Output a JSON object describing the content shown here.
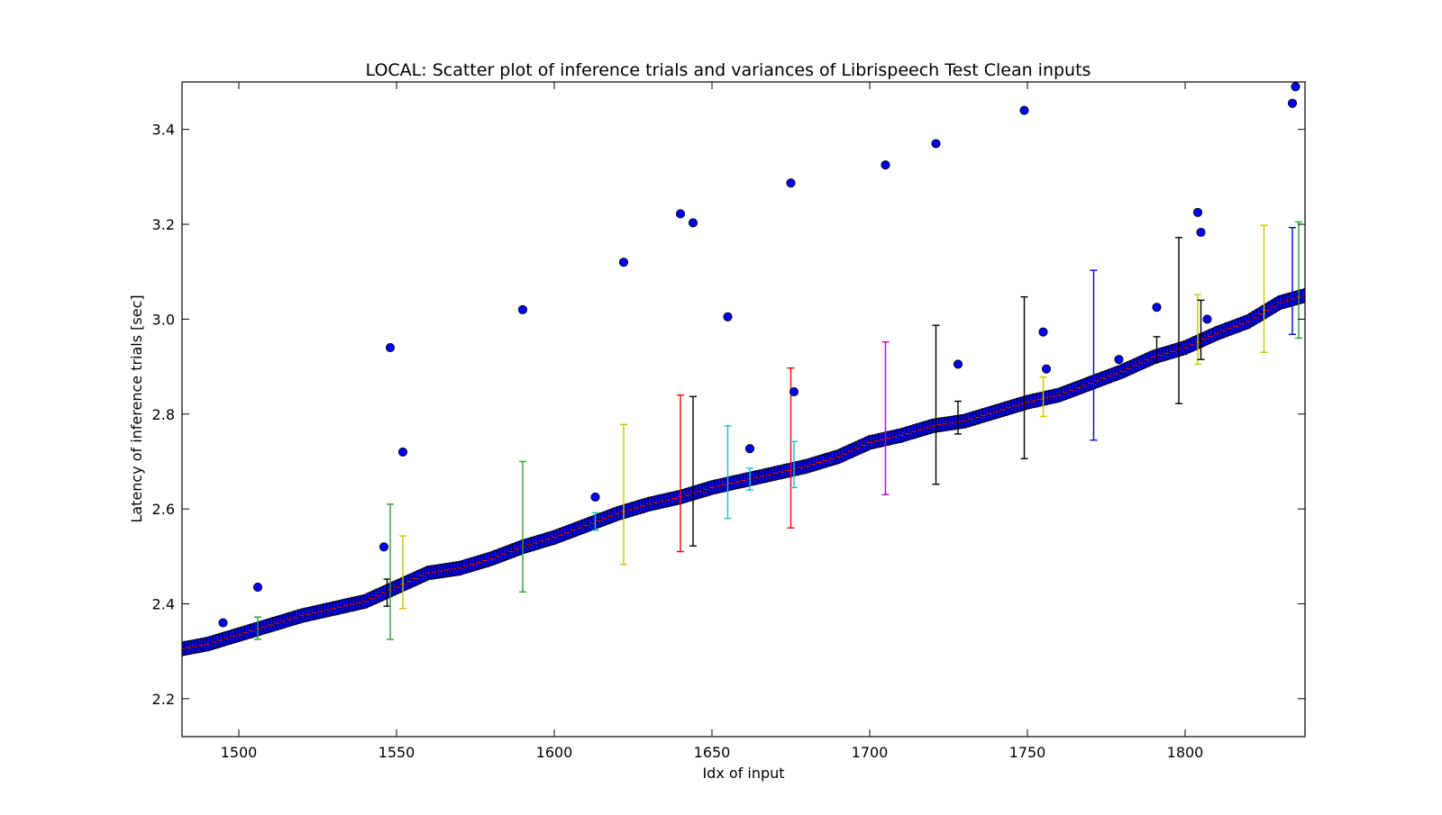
{
  "chart_data": {
    "type": "scatter",
    "title": "LOCAL: Scatter plot of inference trials and variances of Librispeech Test Clean inputs",
    "xlabel": "Idx of input",
    "ylabel": "Latency of inference trials [sec]",
    "xlim": [
      1482,
      1838
    ],
    "ylim": [
      2.12,
      3.5
    ],
    "xticks": [
      1500,
      1550,
      1600,
      1650,
      1700,
      1750,
      1800
    ],
    "yticks": [
      2.2,
      2.4,
      2.6,
      2.8,
      3.0,
      3.2,
      3.4
    ],
    "grid": false,
    "legend": "none",
    "trend": {
      "x": [
        1482,
        1490,
        1500,
        1510,
        1520,
        1530,
        1540,
        1550,
        1560,
        1570,
        1580,
        1590,
        1600,
        1610,
        1620,
        1630,
        1640,
        1650,
        1660,
        1670,
        1680,
        1690,
        1700,
        1710,
        1720,
        1730,
        1740,
        1750,
        1760,
        1770,
        1780,
        1790,
        1800,
        1810,
        1820,
        1830,
        1838
      ],
      "y": [
        2.305,
        2.315,
        2.335,
        2.355,
        2.375,
        2.39,
        2.405,
        2.435,
        2.465,
        2.475,
        2.495,
        2.52,
        2.54,
        2.565,
        2.59,
        2.61,
        2.625,
        2.645,
        2.66,
        2.675,
        2.69,
        2.71,
        2.74,
        2.755,
        2.775,
        2.785,
        2.805,
        2.825,
        2.84,
        2.865,
        2.89,
        2.92,
        2.94,
        2.97,
        2.995,
        3.035,
        3.05
      ]
    },
    "outliers": [
      {
        "x": 1495,
        "y": 2.36
      },
      {
        "x": 1506,
        "y": 2.435
      },
      {
        "x": 1546,
        "y": 2.52
      },
      {
        "x": 1548,
        "y": 2.94
      },
      {
        "x": 1552,
        "y": 2.72
      },
      {
        "x": 1590,
        "y": 3.02
      },
      {
        "x": 1613,
        "y": 2.625
      },
      {
        "x": 1622,
        "y": 3.12
      },
      {
        "x": 1640,
        "y": 3.222
      },
      {
        "x": 1644,
        "y": 3.203
      },
      {
        "x": 1655,
        "y": 3.005
      },
      {
        "x": 1662,
        "y": 2.727
      },
      {
        "x": 1675,
        "y": 3.287
      },
      {
        "x": 1676,
        "y": 2.847
      },
      {
        "x": 1705,
        "y": 3.325
      },
      {
        "x": 1721,
        "y": 3.37
      },
      {
        "x": 1728,
        "y": 2.905
      },
      {
        "x": 1749,
        "y": 3.44
      },
      {
        "x": 1755,
        "y": 2.973
      },
      {
        "x": 1756,
        "y": 2.895
      },
      {
        "x": 1779,
        "y": 2.915
      },
      {
        "x": 1791,
        "y": 3.025
      },
      {
        "x": 1804,
        "y": 3.225
      },
      {
        "x": 1805,
        "y": 3.183
      },
      {
        "x": 1807,
        "y": 3.0
      },
      {
        "x": 1834,
        "y": 3.455
      },
      {
        "x": 1835,
        "y": 3.49
      }
    ],
    "error_bars": [
      {
        "x": 1506,
        "low": 2.325,
        "high": 2.372,
        "color": "#2ca02c"
      },
      {
        "x": 1547,
        "low": 2.395,
        "high": 2.452,
        "color": "#000000"
      },
      {
        "x": 1548,
        "low": 2.325,
        "high": 2.61,
        "color": "#2ca02c"
      },
      {
        "x": 1552,
        "low": 2.39,
        "high": 2.543,
        "color": "#c8c800"
      },
      {
        "x": 1590,
        "low": 2.425,
        "high": 2.7,
        "color": "#2ca02c"
      },
      {
        "x": 1613,
        "low": 2.555,
        "high": 2.592,
        "color": "#17becf"
      },
      {
        "x": 1622,
        "low": 2.483,
        "high": 2.778,
        "color": "#c8c800"
      },
      {
        "x": 1640,
        "low": 2.51,
        "high": 2.84,
        "color": "#ff0000"
      },
      {
        "x": 1644,
        "low": 2.522,
        "high": 2.837,
        "color": "#000000"
      },
      {
        "x": 1655,
        "low": 2.58,
        "high": 2.775,
        "color": "#17becf"
      },
      {
        "x": 1662,
        "low": 2.64,
        "high": 2.686,
        "color": "#17becf"
      },
      {
        "x": 1675,
        "low": 2.56,
        "high": 2.897,
        "color": "#ff0000"
      },
      {
        "x": 1676,
        "low": 2.645,
        "high": 2.742,
        "color": "#17becf"
      },
      {
        "x": 1705,
        "low": 2.63,
        "high": 2.952,
        "color": "#c000c0"
      },
      {
        "x": 1721,
        "low": 2.652,
        "high": 2.987,
        "color": "#000000"
      },
      {
        "x": 1728,
        "low": 2.758,
        "high": 2.827,
        "color": "#000000"
      },
      {
        "x": 1749,
        "low": 2.706,
        "high": 3.047,
        "color": "#000000"
      },
      {
        "x": 1755,
        "low": 2.795,
        "high": 2.878,
        "color": "#c8c800"
      },
      {
        "x": 1771,
        "low": 2.745,
        "high": 3.103,
        "color": "#0000ff"
      },
      {
        "x": 1791,
        "low": 2.91,
        "high": 2.963,
        "color": "#000000"
      },
      {
        "x": 1798,
        "low": 2.822,
        "high": 3.172,
        "color": "#000000"
      },
      {
        "x": 1804,
        "low": 2.905,
        "high": 3.052,
        "color": "#c8c800"
      },
      {
        "x": 1805,
        "low": 2.915,
        "high": 3.04,
        "color": "#000000"
      },
      {
        "x": 1825,
        "low": 2.93,
        "high": 3.198,
        "color": "#c8c800"
      },
      {
        "x": 1834,
        "low": 2.968,
        "high": 3.193,
        "color": "#0000ff"
      },
      {
        "x": 1836,
        "low": 2.96,
        "high": 3.205,
        "color": "#2ca02c"
      }
    ],
    "colors": {
      "points": "#0000ff",
      "point_edge": "#000000",
      "trend_marker": "#ff0000"
    }
  }
}
